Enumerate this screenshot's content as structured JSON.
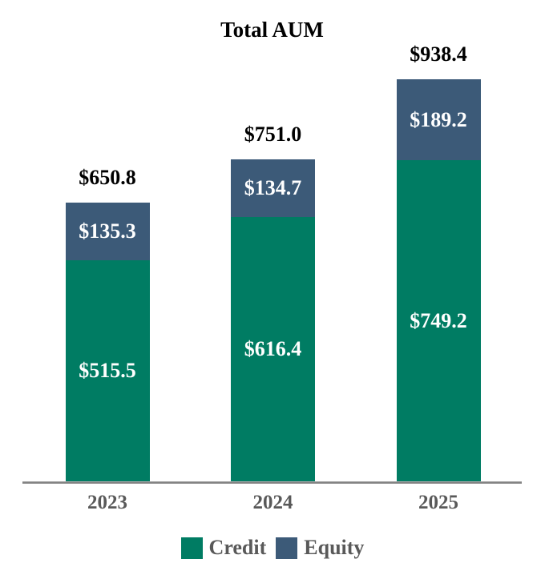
{
  "chart_data": {
    "type": "bar",
    "stacked": true,
    "title": "Total AUM",
    "categories": [
      "2023",
      "2024",
      "2025"
    ],
    "series": [
      {
        "name": "Credit",
        "color": "#007C63",
        "values": [
          515.5,
          616.4,
          749.2
        ]
      },
      {
        "name": "Equity",
        "color": "#3C5A78",
        "values": [
          135.3,
          134.7,
          189.2
        ]
      }
    ],
    "totals": [
      650.8,
      751.0,
      938.4
    ],
    "value_prefix": "$",
    "value_decimals": 1,
    "legend_position": "bottom",
    "grid": false,
    "axis_color": "#848484",
    "label_colors": {
      "total": "#000000",
      "segment": "#FFFFFF",
      "category": "#595959",
      "legend": "#595959"
    }
  }
}
